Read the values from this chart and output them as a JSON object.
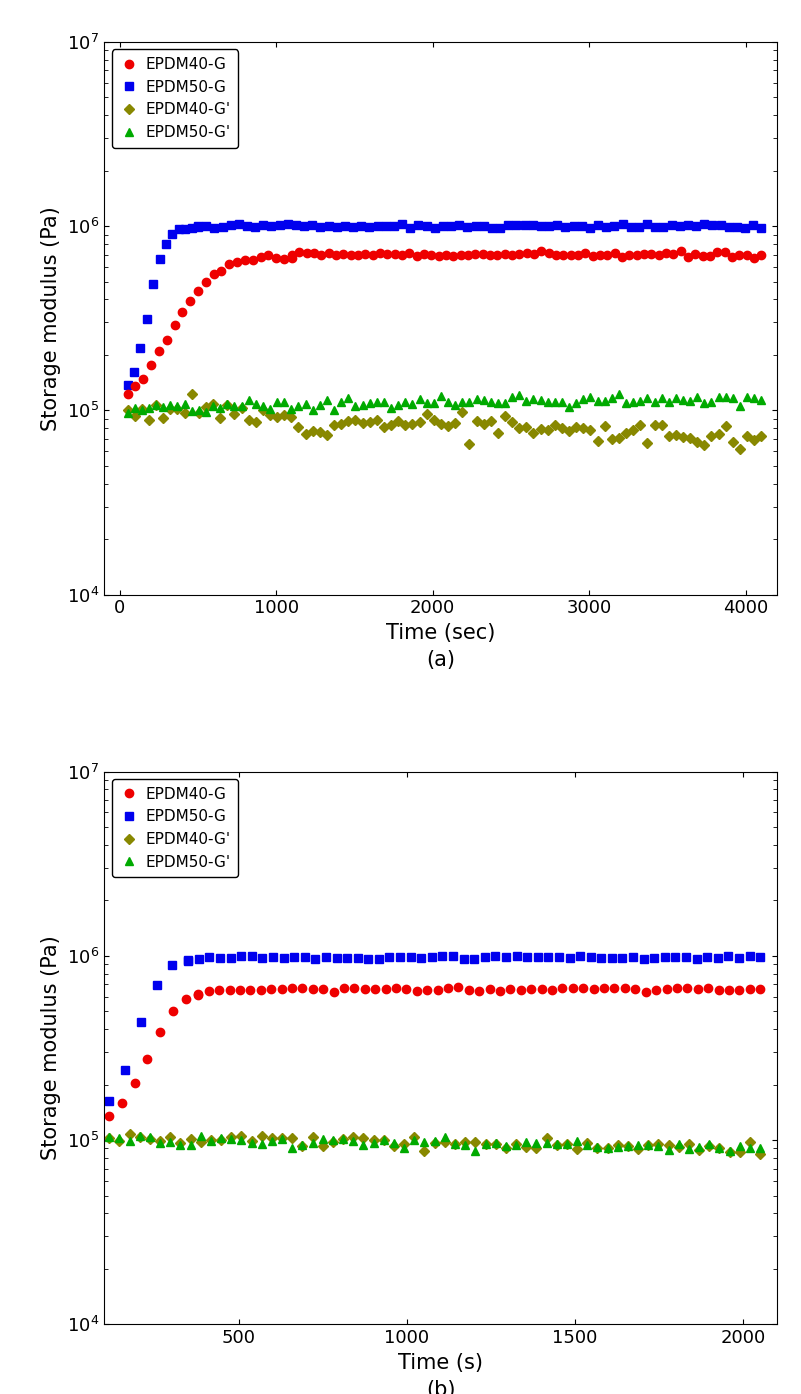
{
  "subplot_a": {
    "xlabel": "Time (sec)",
    "ylabel": "Storage modulus (Pa)",
    "label": "(a)",
    "xlim": [
      -100,
      4200
    ],
    "xticks": [
      0,
      1000,
      2000,
      3000,
      4000
    ],
    "ylim_log": [
      4,
      7
    ],
    "series": {
      "EPDM40_G": {
        "label": "EPDM40-G",
        "color": "#EE0000",
        "marker": "o",
        "markersize": 6
      },
      "EPDM50_G": {
        "label": "EPDM50-G",
        "color": "#0000EE",
        "marker": "s",
        "markersize": 6
      },
      "EPDM40_Gp": {
        "label": "EPDM40-G'",
        "color": "#888800",
        "marker": "D",
        "markersize": 5
      },
      "EPDM50_Gp": {
        "label": "EPDM50-G'",
        "color": "#00AA00",
        "marker": "^",
        "markersize": 6
      }
    }
  },
  "subplot_b": {
    "xlabel": "Time (s)",
    "ylabel": "Storage modulus (Pa)",
    "label": "(b)",
    "xlim": [
      100,
      2100
    ],
    "xticks": [
      500,
      1000,
      1500,
      2000
    ],
    "ylim_log": [
      4,
      7
    ],
    "series": {
      "EPDM40_G": {
        "label": "EPDM40-G",
        "color": "#EE0000",
        "marker": "o",
        "markersize": 6
      },
      "EPDM50_G": {
        "label": "EPDM50-G",
        "color": "#0000EE",
        "marker": "s",
        "markersize": 6
      },
      "EPDM40_Gp": {
        "label": "EPDM40-G'",
        "color": "#888800",
        "marker": "D",
        "markersize": 5
      },
      "EPDM50_Gp": {
        "label": "EPDM50-G'",
        "color": "#00AA00",
        "marker": "^",
        "markersize": 6
      }
    }
  },
  "legend_fontsize": 11,
  "axis_label_fontsize": 15,
  "tick_fontsize": 13,
  "caption_fontsize": 15
}
